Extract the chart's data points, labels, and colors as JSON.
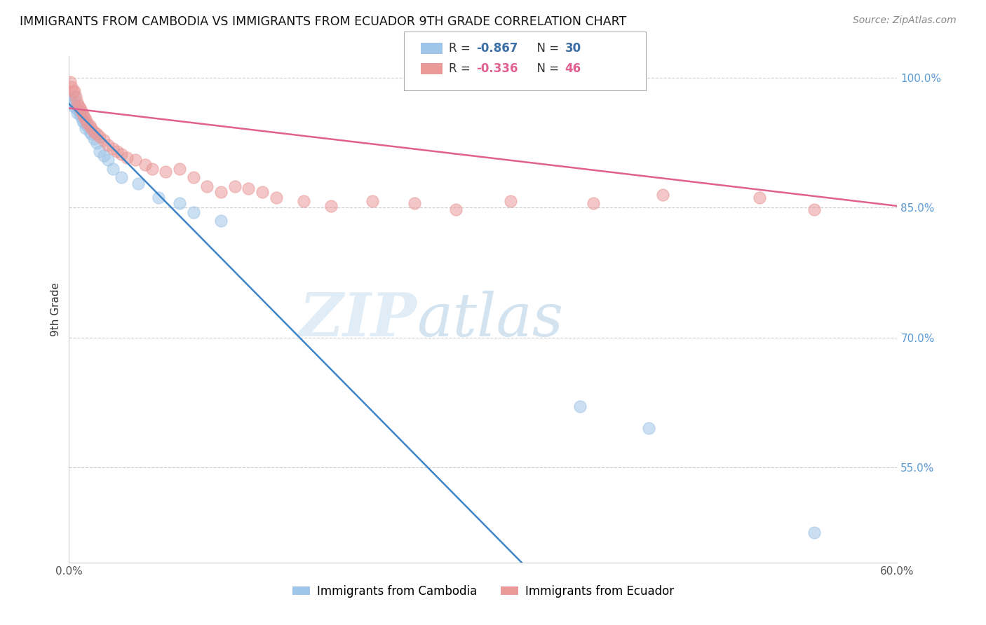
{
  "title": "IMMIGRANTS FROM CAMBODIA VS IMMIGRANTS FROM ECUADOR 9TH GRADE CORRELATION CHART",
  "source": "Source: ZipAtlas.com",
  "ylabel": "9th Grade",
  "x_min": 0.0,
  "x_max": 0.6,
  "y_min": 0.44,
  "y_max": 1.025,
  "right_y_ticks": [
    1.0,
    0.85,
    0.7,
    0.55
  ],
  "right_y_labels": [
    "100.0%",
    "85.0%",
    "70.0%",
    "55.0%"
  ],
  "x_ticks": [
    0.0,
    0.1,
    0.2,
    0.3,
    0.4,
    0.5,
    0.6
  ],
  "x_tick_labels": [
    "0.0%",
    "",
    "",
    "",
    "",
    "",
    "60.0%"
  ],
  "cambodia_color": "#9fc5e8",
  "ecuador_color": "#ea9999",
  "cambodia_R": -0.867,
  "cambodia_N": 30,
  "ecuador_R": -0.336,
  "ecuador_N": 46,
  "cambodia_line_color": "#3d85c8",
  "ecuador_line_color": "#e06090",
  "watermark_zip": "ZIP",
  "watermark_atlas": "atlas",
  "legend_label_1": "Immigrants from Cambodia",
  "legend_label_2": "Immigrants from Ecuador",
  "cambodia_x": [
    0.001,
    0.002,
    0.003,
    0.004,
    0.005,
    0.006,
    0.007,
    0.008,
    0.009,
    0.01,
    0.011,
    0.012,
    0.013,
    0.015,
    0.016,
    0.018,
    0.02,
    0.022,
    0.025,
    0.028,
    0.032,
    0.038,
    0.05,
    0.065,
    0.08,
    0.09,
    0.11,
    0.37,
    0.42,
    0.54
  ],
  "cambodia_y": [
    0.975,
    0.972,
    0.968,
    0.978,
    0.965,
    0.96,
    0.962,
    0.958,
    0.955,
    0.95,
    0.948,
    0.942,
    0.945,
    0.938,
    0.935,
    0.93,
    0.925,
    0.915,
    0.91,
    0.905,
    0.895,
    0.885,
    0.878,
    0.862,
    0.855,
    0.845,
    0.835,
    0.62,
    0.595,
    0.475
  ],
  "ecuador_x": [
    0.001,
    0.002,
    0.003,
    0.004,
    0.005,
    0.006,
    0.007,
    0.008,
    0.009,
    0.01,
    0.011,
    0.012,
    0.013,
    0.015,
    0.016,
    0.018,
    0.02,
    0.022,
    0.025,
    0.028,
    0.032,
    0.035,
    0.038,
    0.042,
    0.048,
    0.055,
    0.06,
    0.07,
    0.08,
    0.09,
    0.1,
    0.11,
    0.12,
    0.13,
    0.14,
    0.15,
    0.17,
    0.19,
    0.22,
    0.25,
    0.28,
    0.32,
    0.38,
    0.43,
    0.5,
    0.54
  ],
  "ecuador_y": [
    0.995,
    0.99,
    0.985,
    0.985,
    0.978,
    0.972,
    0.968,
    0.965,
    0.962,
    0.958,
    0.955,
    0.952,
    0.948,
    0.945,
    0.942,
    0.938,
    0.935,
    0.932,
    0.928,
    0.922,
    0.918,
    0.915,
    0.912,
    0.908,
    0.905,
    0.9,
    0.895,
    0.892,
    0.895,
    0.885,
    0.875,
    0.868,
    0.875,
    0.872,
    0.868,
    0.862,
    0.858,
    0.852,
    0.858,
    0.855,
    0.848,
    0.858,
    0.855,
    0.865,
    0.862,
    0.848
  ]
}
